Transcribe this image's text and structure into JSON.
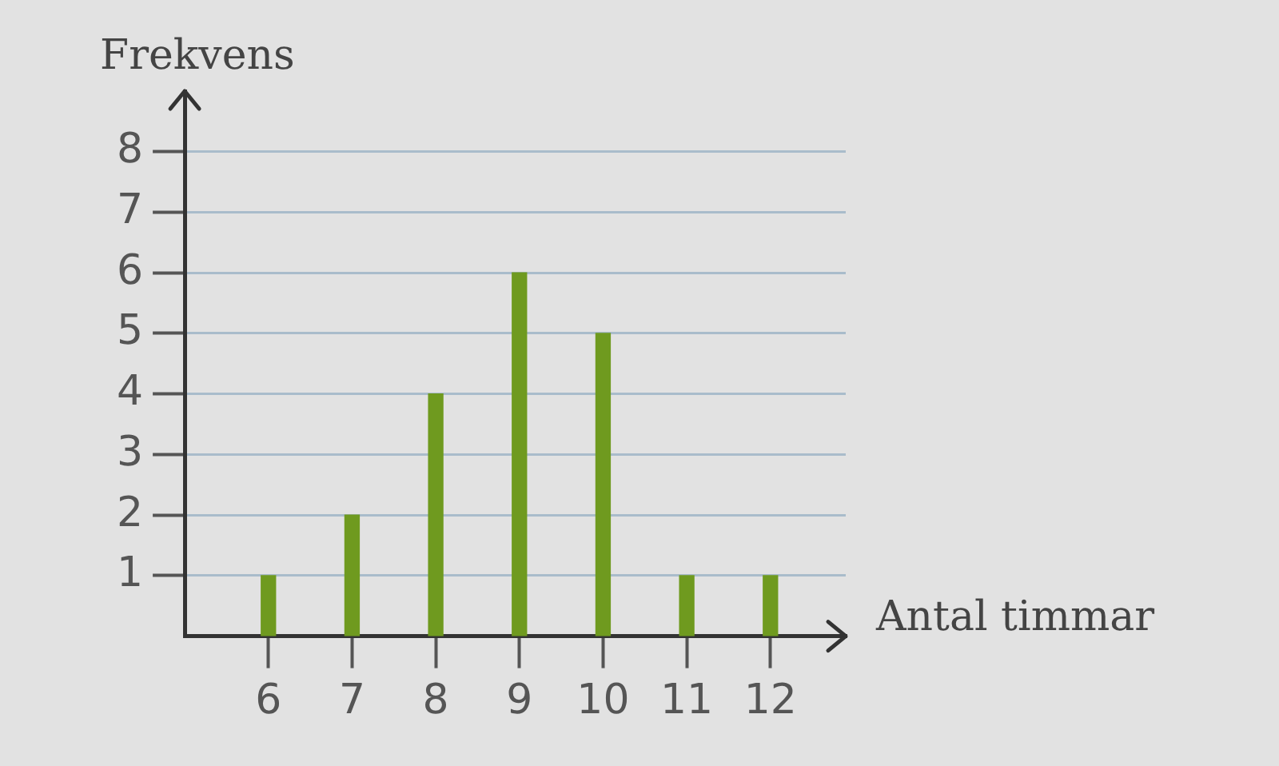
{
  "chart_data": {
    "type": "bar",
    "xlabel": "Antal timmar",
    "ylabel": "Frekvens",
    "x": [
      6,
      7,
      8,
      9,
      10,
      11,
      12
    ],
    "values": [
      1,
      2,
      4,
      6,
      5,
      1,
      1
    ],
    "color": "#6f9a1f",
    "xlim": [
      5,
      12.9
    ],
    "xticks": [
      6,
      7,
      8,
      9,
      10,
      11,
      12
    ],
    "ylim": [
      0,
      9
    ],
    "yticks": [
      1,
      2,
      3,
      4,
      5,
      6,
      7,
      8
    ],
    "grid": "y"
  }
}
